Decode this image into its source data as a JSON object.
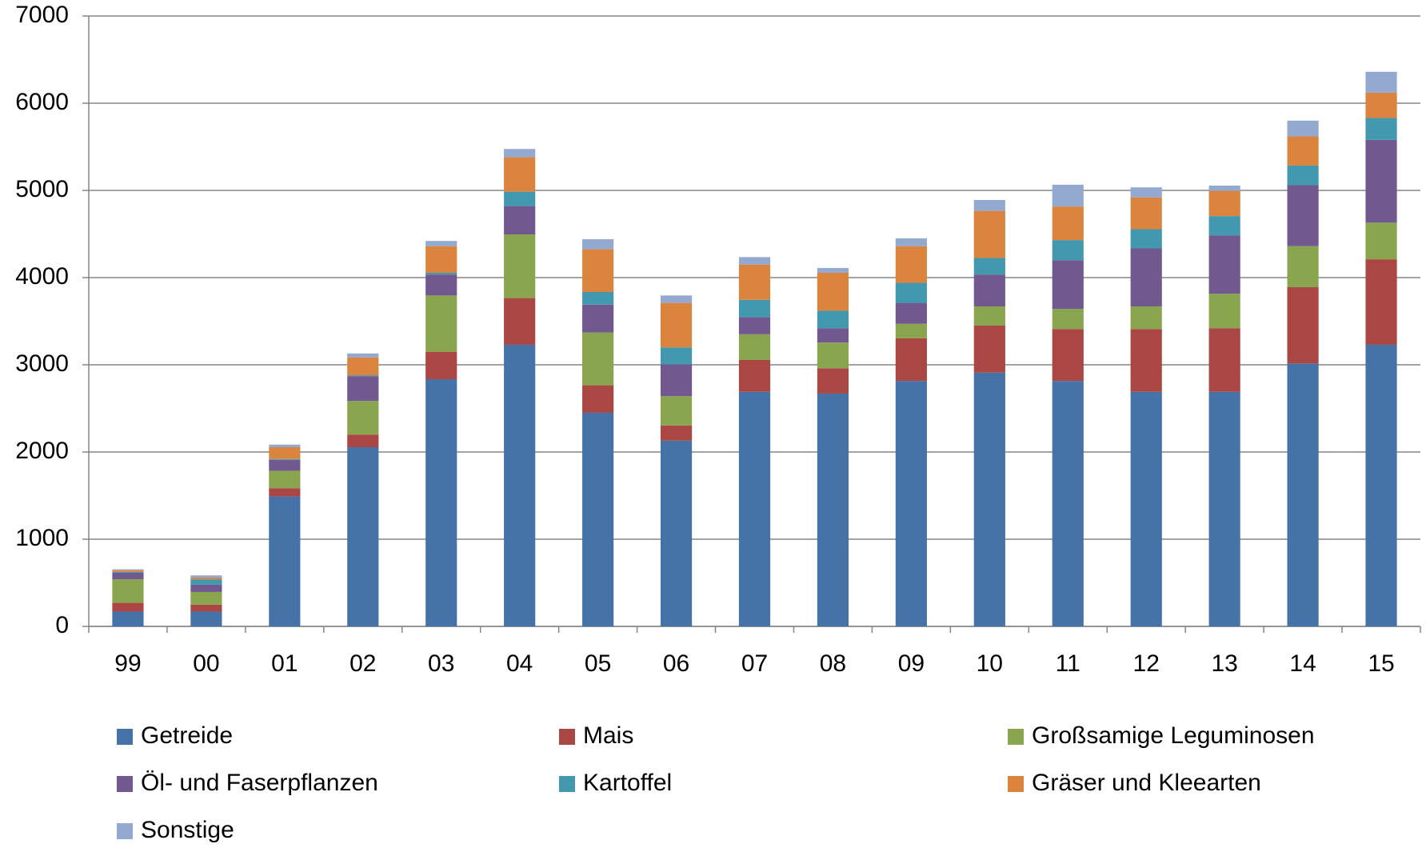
{
  "chart_data": {
    "type": "stacked_bar",
    "categories": [
      "99",
      "00",
      "01",
      "02",
      "03",
      "04",
      "05",
      "06",
      "07",
      "08",
      "09",
      "10",
      "11",
      "12",
      "13",
      "14",
      "15"
    ],
    "series": [
      {
        "name": "Getreide",
        "color": "#4572a7",
        "values": [
          170,
          170,
          1490,
          2055,
          2835,
          3230,
          2450,
          2130,
          2690,
          2670,
          2815,
          2910,
          2815,
          2690,
          2690,
          3015,
          3230
        ]
      },
      {
        "name": "Mais",
        "color": "#aa4643",
        "values": [
          100,
          80,
          95,
          145,
          315,
          535,
          315,
          175,
          365,
          290,
          490,
          540,
          595,
          720,
          730,
          875,
          980
        ]
      },
      {
        "name": "Großsamige Leguminosen",
        "color": "#89a54e",
        "values": [
          270,
          145,
          200,
          385,
          645,
          730,
          605,
          335,
          295,
          295,
          165,
          220,
          230,
          260,
          395,
          470,
          420
        ]
      },
      {
        "name": "Öl- und Faserpflanzen",
        "color": "#71588f",
        "values": [
          75,
          85,
          125,
          285,
          240,
          325,
          320,
          365,
          195,
          165,
          240,
          365,
          560,
          665,
          670,
          700,
          950
        ]
      },
      {
        "name": "Kartoffel",
        "color": "#4198af",
        "values": [
          10,
          60,
          10,
          10,
          20,
          165,
          145,
          195,
          200,
          200,
          230,
          190,
          230,
          220,
          220,
          225,
          250
        ]
      },
      {
        "name": "Gräser und Kleearten",
        "color": "#db843d",
        "values": [
          20,
          20,
          135,
          205,
          305,
          395,
          490,
          510,
          405,
          435,
          420,
          540,
          385,
          365,
          290,
          335,
          290
        ]
      },
      {
        "name": "Sonstige",
        "color": "#93a9cf",
        "values": [
          10,
          25,
          30,
          45,
          60,
          95,
          115,
          85,
          85,
          55,
          90,
          125,
          250,
          115,
          60,
          180,
          240
        ]
      }
    ],
    "ylim": [
      0,
      7000
    ],
    "yticks": [
      0,
      1000,
      2000,
      3000,
      4000,
      5000,
      6000,
      7000
    ],
    "grid": true,
    "legend": "bottom"
  }
}
